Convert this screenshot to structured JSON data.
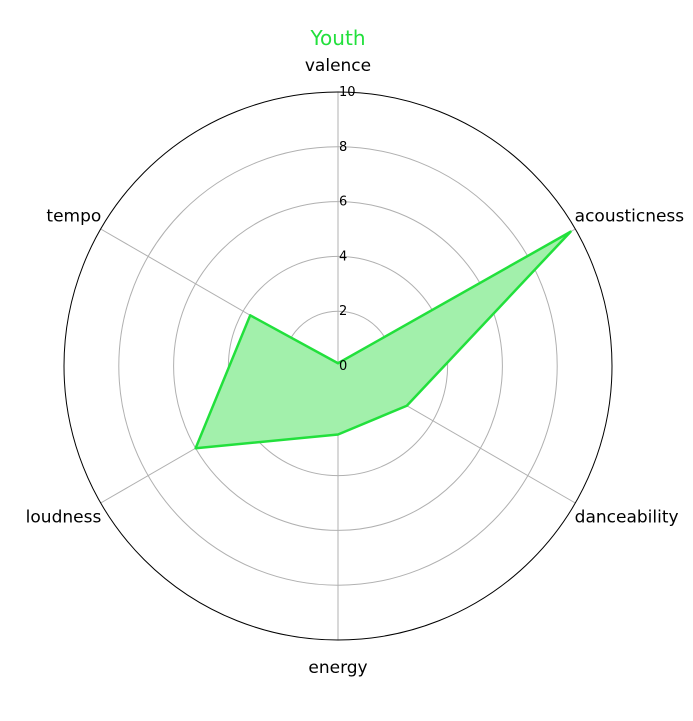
{
  "chart_data": {
    "type": "radar",
    "title": "Youth",
    "title_color": "#22e03c",
    "axes": [
      "valence",
      "acousticness",
      "danceability",
      "energy",
      "loudness",
      "tempo"
    ],
    "rlim": [
      0,
      10
    ],
    "rticks": [
      0,
      2,
      4,
      6,
      8,
      10
    ],
    "rtick_labels": [
      "0",
      "2",
      "4",
      "6",
      "8",
      "10"
    ],
    "grid": true,
    "series": [
      {
        "name": "Youth",
        "values": [
          0.1,
          9.8,
          2.9,
          2.5,
          6.0,
          3.7
        ],
        "color": "#22e03c",
        "fill": "#a2f0ab"
      }
    ]
  }
}
